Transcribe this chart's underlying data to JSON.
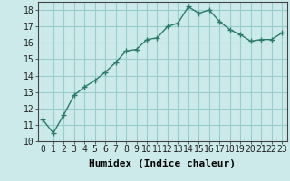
{
  "x": [
    0,
    1,
    2,
    3,
    4,
    5,
    6,
    7,
    8,
    9,
    10,
    11,
    12,
    13,
    14,
    15,
    16,
    17,
    18,
    19,
    20,
    21,
    22,
    23
  ],
  "y": [
    11.3,
    10.5,
    11.6,
    12.8,
    13.3,
    13.7,
    14.2,
    14.8,
    15.5,
    15.6,
    16.2,
    16.3,
    17.0,
    17.2,
    18.2,
    17.8,
    18.0,
    17.3,
    16.8,
    16.5,
    16.1,
    16.2,
    16.2,
    16.6
  ],
  "xlabel": "Humidex (Indice chaleur)",
  "ylim": [
    10,
    18.5
  ],
  "xlim_min": -0.5,
  "xlim_max": 23.5,
  "yticks": [
    10,
    11,
    12,
    13,
    14,
    15,
    16,
    17,
    18
  ],
  "xticks": [
    0,
    1,
    2,
    3,
    4,
    5,
    6,
    7,
    8,
    9,
    10,
    11,
    12,
    13,
    14,
    15,
    16,
    17,
    18,
    19,
    20,
    21,
    22,
    23
  ],
  "xtick_labels": [
    "0",
    "1",
    "2",
    "3",
    "4",
    "5",
    "6",
    "7",
    "8",
    "9",
    "10",
    "11",
    "12",
    "13",
    "14",
    "15",
    "16",
    "17",
    "18",
    "19",
    "20",
    "21",
    "22",
    "23"
  ],
  "line_color": "#2a7a6a",
  "marker": "+",
  "bg_color": "#cceaea",
  "grid_color": "#99cccc",
  "xlabel_fontsize": 8,
  "tick_fontsize": 7,
  "linewidth": 1.0,
  "markersize": 4
}
